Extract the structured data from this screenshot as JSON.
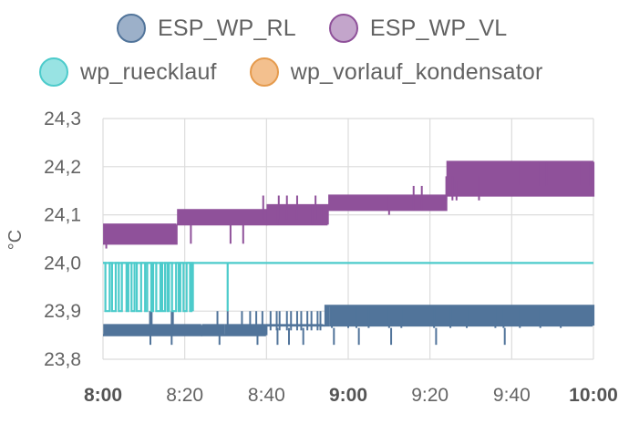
{
  "legend": [
    {
      "name": "ESP_WP_RL",
      "fill": "#9cb0c9",
      "stroke": "#51749a"
    },
    {
      "name": "ESP_WP_VL",
      "fill": "#c3a5cb",
      "stroke": "#8f519a"
    },
    {
      "name": "wp_ruecklauf",
      "fill": "#98e3e3",
      "stroke": "#4ccbcb"
    },
    {
      "name": "wp_vorlauf_kondensator",
      "fill": "#f3c08e",
      "stroke": "#e59a4c"
    }
  ],
  "chart_data": {
    "type": "line",
    "ylabel": "°C",
    "xlabel": "",
    "ylim": [
      23.8,
      24.3
    ],
    "y_ticks": [
      "23,8",
      "23,9",
      "24,0",
      "24,1",
      "24,2",
      "24,3"
    ],
    "x_ticks": [
      {
        "label": "8:00",
        "bold": true
      },
      {
        "label": "8:20",
        "bold": false
      },
      {
        "label": "8:40",
        "bold": false
      },
      {
        "label": "9:00",
        "bold": true
      },
      {
        "label": "9:20",
        "bold": false
      },
      {
        "label": "9:40",
        "bold": false
      },
      {
        "label": "10:00",
        "bold": true
      }
    ],
    "x_range_minutes": [
      0,
      120
    ],
    "grid": true,
    "legend_position": "top",
    "series": [
      {
        "name": "ESP_WP_RL",
        "color": "#51749a",
        "base": 23.85,
        "alt": 23.9,
        "segments": [
          {
            "from": 0,
            "to": 24,
            "level": 23.86,
            "band": [
              23.85,
              23.87
            ],
            "flips_up": [
              11.5,
              11.9,
              16.8,
              17.1
            ]
          },
          {
            "from": 24,
            "to": 40,
            "level": 23.86,
            "band": [
              23.85,
              23.87
            ],
            "flips_up": [
              28,
              30.5,
              34,
              36,
              37.5,
              39
            ]
          },
          {
            "from": 40,
            "to": 54,
            "level": 23.87,
            "band": [
              23.87,
              23.87
            ],
            "flips_up": [
              41,
              42.5,
              43.2,
              45,
              46,
              47.5,
              48.5,
              50,
              51,
              52.5,
              53.2
            ]
          },
          {
            "from": 54,
            "to": 120,
            "level": 23.89,
            "band": [
              23.87,
              23.91
            ],
            "flips_down": [
              56,
              60,
              62,
              65,
              70,
              73,
              81,
              85,
              89,
              96,
              98,
              102,
              107,
              112
            ]
          }
        ],
        "dips": [
          {
            "x": 11.6,
            "y": 23.83
          },
          {
            "x": 16.8,
            "y": 23.83
          },
          {
            "x": 28.5,
            "y": 23.83
          },
          {
            "x": 37.8,
            "y": 23.83
          },
          {
            "x": 42.7,
            "y": 23.83
          },
          {
            "x": 45.5,
            "y": 23.83
          },
          {
            "x": 49,
            "y": 23.83
          },
          {
            "x": 56.5,
            "y": 23.83
          },
          {
            "x": 62.6,
            "y": 23.83
          },
          {
            "x": 70.5,
            "y": 23.83
          },
          {
            "x": 81.5,
            "y": 23.83
          },
          {
            "x": 98.3,
            "y": 23.83
          }
        ]
      },
      {
        "name": "ESP_WP_VL",
        "color": "#8f519a",
        "segments": [
          {
            "from": 0,
            "to": 18,
            "band": [
              24.04,
              24.08
            ]
          },
          {
            "from": 18,
            "to": 40,
            "band": [
              24.08,
              24.11
            ]
          },
          {
            "from": 40,
            "to": 55,
            "band": [
              24.08,
              24.12
            ]
          },
          {
            "from": 55,
            "to": 84,
            "band": [
              24.11,
              24.14
            ]
          },
          {
            "from": 84,
            "to": 120,
            "band": [
              24.14,
              24.21
            ]
          }
        ],
        "dips": [
          {
            "x": 0.8,
            "y": 24.03
          },
          {
            "x": 21.5,
            "y": 24.04
          },
          {
            "x": 31.2,
            "y": 24.04
          },
          {
            "x": 34.3,
            "y": 24.04
          },
          {
            "x": 42.8,
            "y": 24.08
          },
          {
            "x": 51.2,
            "y": 24.08
          },
          {
            "x": 53.5,
            "y": 24.08
          },
          {
            "x": 70,
            "y": 24.1
          },
          {
            "x": 86.5,
            "y": 24.13
          }
        ],
        "spikes": [
          {
            "x": 39.2,
            "y": 24.14
          },
          {
            "x": 43,
            "y": 24.14
          },
          {
            "x": 45,
            "y": 24.14
          },
          {
            "x": 47.5,
            "y": 24.14
          },
          {
            "x": 52,
            "y": 24.14
          },
          {
            "x": 76,
            "y": 24.16
          },
          {
            "x": 78,
            "y": 24.16
          },
          {
            "x": 84,
            "y": 24.18
          },
          {
            "x": 85.5,
            "y": 24.18
          },
          {
            "x": 92,
            "y": 24.18
          },
          {
            "x": 102,
            "y": 24.21
          },
          {
            "x": 104.5,
            "y": 24.21
          },
          {
            "x": 106.5,
            "y": 24.21
          },
          {
            "x": 108.5,
            "y": 24.21
          },
          {
            "x": 112,
            "y": 24.21
          },
          {
            "x": 117,
            "y": 24.21
          },
          {
            "x": 119.3,
            "y": 24.21
          }
        ]
      },
      {
        "name": "wp_ruecklauf",
        "color": "#4ccbcb",
        "level": 24.0,
        "osc_from": 0,
        "osc_to": 22,
        "osc_low": 23.9,
        "extra_dip": {
          "x": 30.5,
          "y": 23.9
        }
      },
      {
        "name": "wp_vorlauf_kondensator",
        "color": "#e59a4c",
        "values": []
      }
    ]
  }
}
